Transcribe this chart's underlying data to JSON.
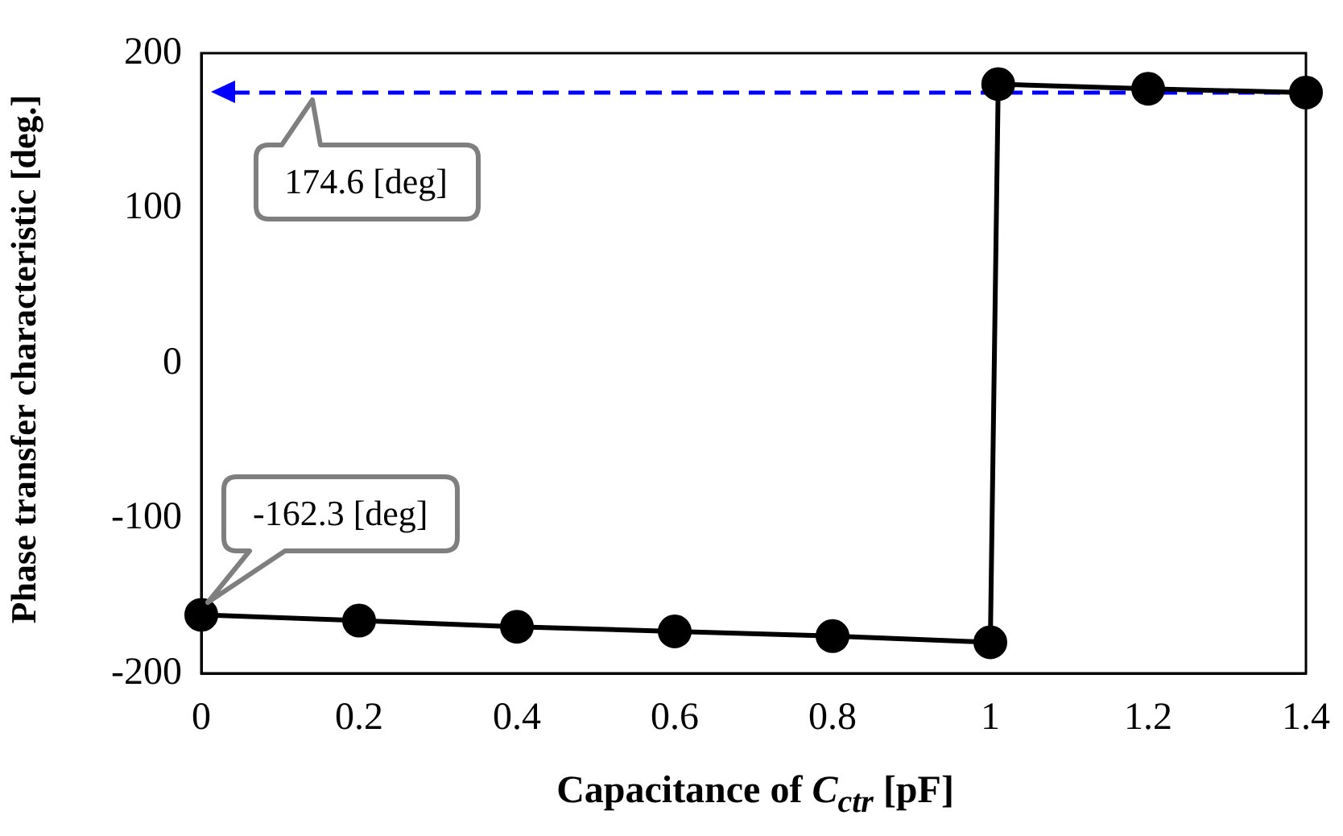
{
  "chart_data": {
    "type": "line",
    "xlabel": "Capacitance of C$_{ctr}$ [pF]",
    "ylabel": "Phase transfer characteristic  [deg.]",
    "x": [
      0,
      0.2,
      0.4,
      0.6,
      0.8,
      1,
      1.01,
      1.2,
      1.4
    ],
    "series": [
      {
        "color": "#000000",
        "values": [
          -162.3,
          -166,
          -170,
          -173,
          -176,
          -180,
          180,
          177,
          174.6
        ]
      }
    ],
    "xlim": [
      0,
      1.4
    ],
    "xticks": [
      0,
      0.2,
      0.4,
      0.6,
      0.8,
      1,
      1.2,
      1.4
    ],
    "ylim": [
      -200,
      200
    ],
    "yticks": [
      -200,
      -100,
      0,
      100,
      200
    ],
    "grid": false,
    "legend": false,
    "marker": "circle",
    "line_style": "solid",
    "ref_lines": [
      {
        "axis": "y",
        "value": 174.6,
        "color": "#0000ff",
        "line_style": "dashed"
      }
    ],
    "annotations": [
      {
        "text": "174.6 [deg]",
        "x": 0.14,
        "y": 170
      },
      {
        "text": "-162.3 [deg]",
        "x": 0,
        "y": -162.3
      }
    ]
  }
}
